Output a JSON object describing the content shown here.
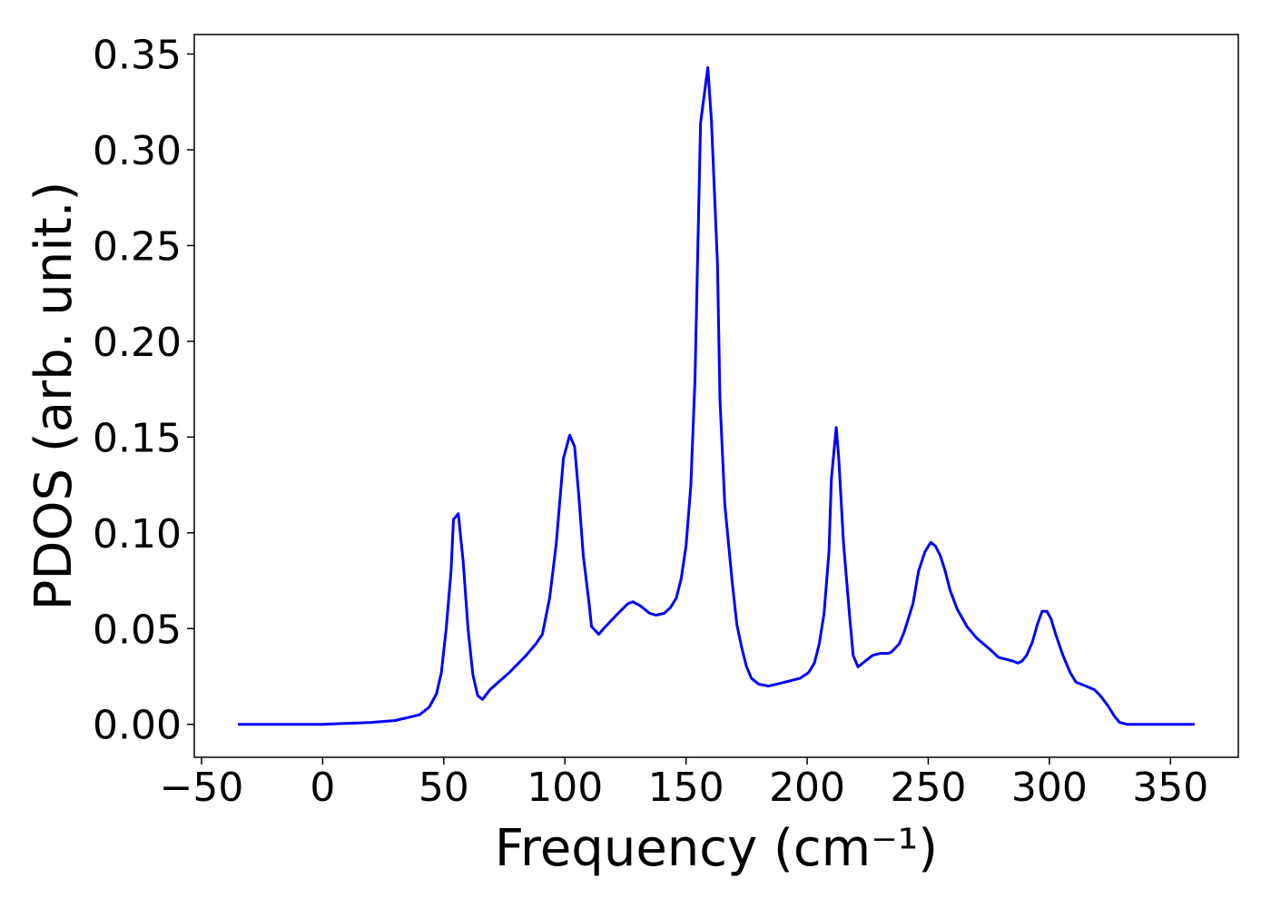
{
  "chart_data": {
    "type": "line",
    "xlabel": "Frequency (cm⁻¹)",
    "ylabel": "PDOS (arb. unit.)",
    "x": [
      -35,
      0,
      20,
      30,
      40,
      44,
      47,
      49,
      51,
      53,
      54,
      56,
      58,
      60,
      62,
      64,
      66,
      69,
      77,
      84,
      88,
      90.7,
      93.7,
      96.4,
      99.4,
      102,
      104,
      105.7,
      107.6,
      110,
      111,
      114,
      116,
      122,
      126,
      128,
      131,
      135,
      137.6,
      141,
      143.6,
      146,
      148,
      150,
      152,
      153.7,
      156,
      159,
      160.5,
      163,
      164,
      166,
      169,
      171,
      173,
      175,
      177,
      180,
      184,
      187.5,
      197,
      200.6,
      203,
      205,
      207,
      209,
      210,
      212,
      213,
      215,
      217.5,
      219,
      221,
      223,
      227,
      230,
      233.6,
      235,
      238,
      240,
      243.7,
      246,
      248.6,
      251,
      253,
      255,
      257,
      259,
      262,
      266,
      270,
      275.6,
      279,
      285,
      287,
      288.7,
      290.6,
      293,
      295,
      297,
      299,
      300.7,
      302.6,
      305.6,
      308.6,
      311,
      315,
      318.7,
      321,
      324,
      327,
      329,
      332,
      360
    ],
    "series": [
      {
        "color": "#0000ff",
        "values": [
          0,
          0,
          0.001,
          0.002,
          0.005,
          0.009,
          0.016,
          0.027,
          0.05,
          0.08,
          0.107,
          0.11,
          0.085,
          0.05,
          0.026,
          0.015,
          0.013,
          0.018,
          0.027,
          0.036,
          0.042,
          0.047,
          0.066,
          0.094,
          0.139,
          0.151,
          0.145,
          0.12,
          0.088,
          0.063,
          0.051,
          0.047,
          0.05,
          0.058,
          0.063,
          0.064,
          0.062,
          0.058,
          0.057,
          0.058,
          0.061,
          0.066,
          0.076,
          0.093,
          0.125,
          0.18,
          0.314,
          0.343,
          0.315,
          0.24,
          0.17,
          0.115,
          0.075,
          0.052,
          0.04,
          0.03,
          0.024,
          0.021,
          0.02,
          0.021,
          0.024,
          0.027,
          0.032,
          0.042,
          0.058,
          0.09,
          0.128,
          0.155,
          0.14,
          0.095,
          0.057,
          0.036,
          0.03,
          0.032,
          0.036,
          0.037,
          0.037,
          0.038,
          0.042,
          0.048,
          0.063,
          0.08,
          0.09,
          0.095,
          0.093,
          0.088,
          0.08,
          0.07,
          0.06,
          0.051,
          0.045,
          0.039,
          0.035,
          0.033,
          0.032,
          0.033,
          0.036,
          0.043,
          0.052,
          0.059,
          0.059,
          0.055,
          0.047,
          0.036,
          0.027,
          0.022,
          0.02,
          0.018,
          0.015,
          0.01,
          0.004,
          0.001,
          0,
          0
        ]
      }
    ],
    "xlim": [
      -53,
      378
    ],
    "ylim": [
      -0.0172,
      0.3602
    ],
    "xticks": [
      {
        "value": -50,
        "label": "−50"
      },
      0,
      50,
      100,
      150,
      200,
      250,
      300,
      350
    ],
    "yticks": [
      {
        "value": 0,
        "label": "0.00"
      },
      {
        "value": 0.05,
        "label": "0.05"
      },
      {
        "value": 0.1,
        "label": "0.10"
      },
      {
        "value": 0.15,
        "label": "0.15"
      },
      {
        "value": 0.2,
        "label": "0.20"
      },
      {
        "value": 0.25,
        "label": "0.25"
      },
      {
        "value": 0.3,
        "label": "0.30"
      },
      {
        "value": 0.35,
        "label": "0.35"
      }
    ]
  }
}
